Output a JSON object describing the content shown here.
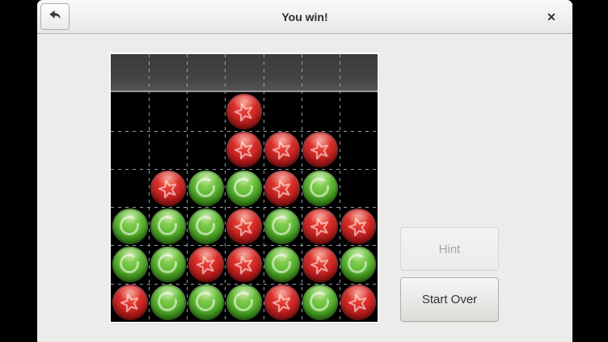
{
  "header": {
    "title": "You win!",
    "back_icon": "back-arrow",
    "close_icon": "✕"
  },
  "panel": {
    "hint_label": "Hint",
    "hint_enabled": false,
    "start_over_label": "Start Over"
  },
  "board": {
    "columns": 7,
    "rows": 7,
    "legend": {
      "R": "red-star-ball",
      "G": "green-ring-ball",
      ".": "empty"
    },
    "cell_codes": [
      ".......",
      "...R...",
      "...RRR.",
      ".RGGRG.",
      "GGGRGRR",
      "GGRRGRG",
      "RGGGRGR"
    ],
    "drop_zone_row": 0,
    "winning_line": "red diagonal from row2-col5 down-left to row5-col2"
  },
  "colors": {
    "red_ball": "#c41d1d",
    "green_ball": "#47a522",
    "board_background": "#000000",
    "grid_line": "#a2aeba",
    "window_background": "#edecea",
    "header_border": "#b4b2af",
    "letterbox": "#000000"
  }
}
